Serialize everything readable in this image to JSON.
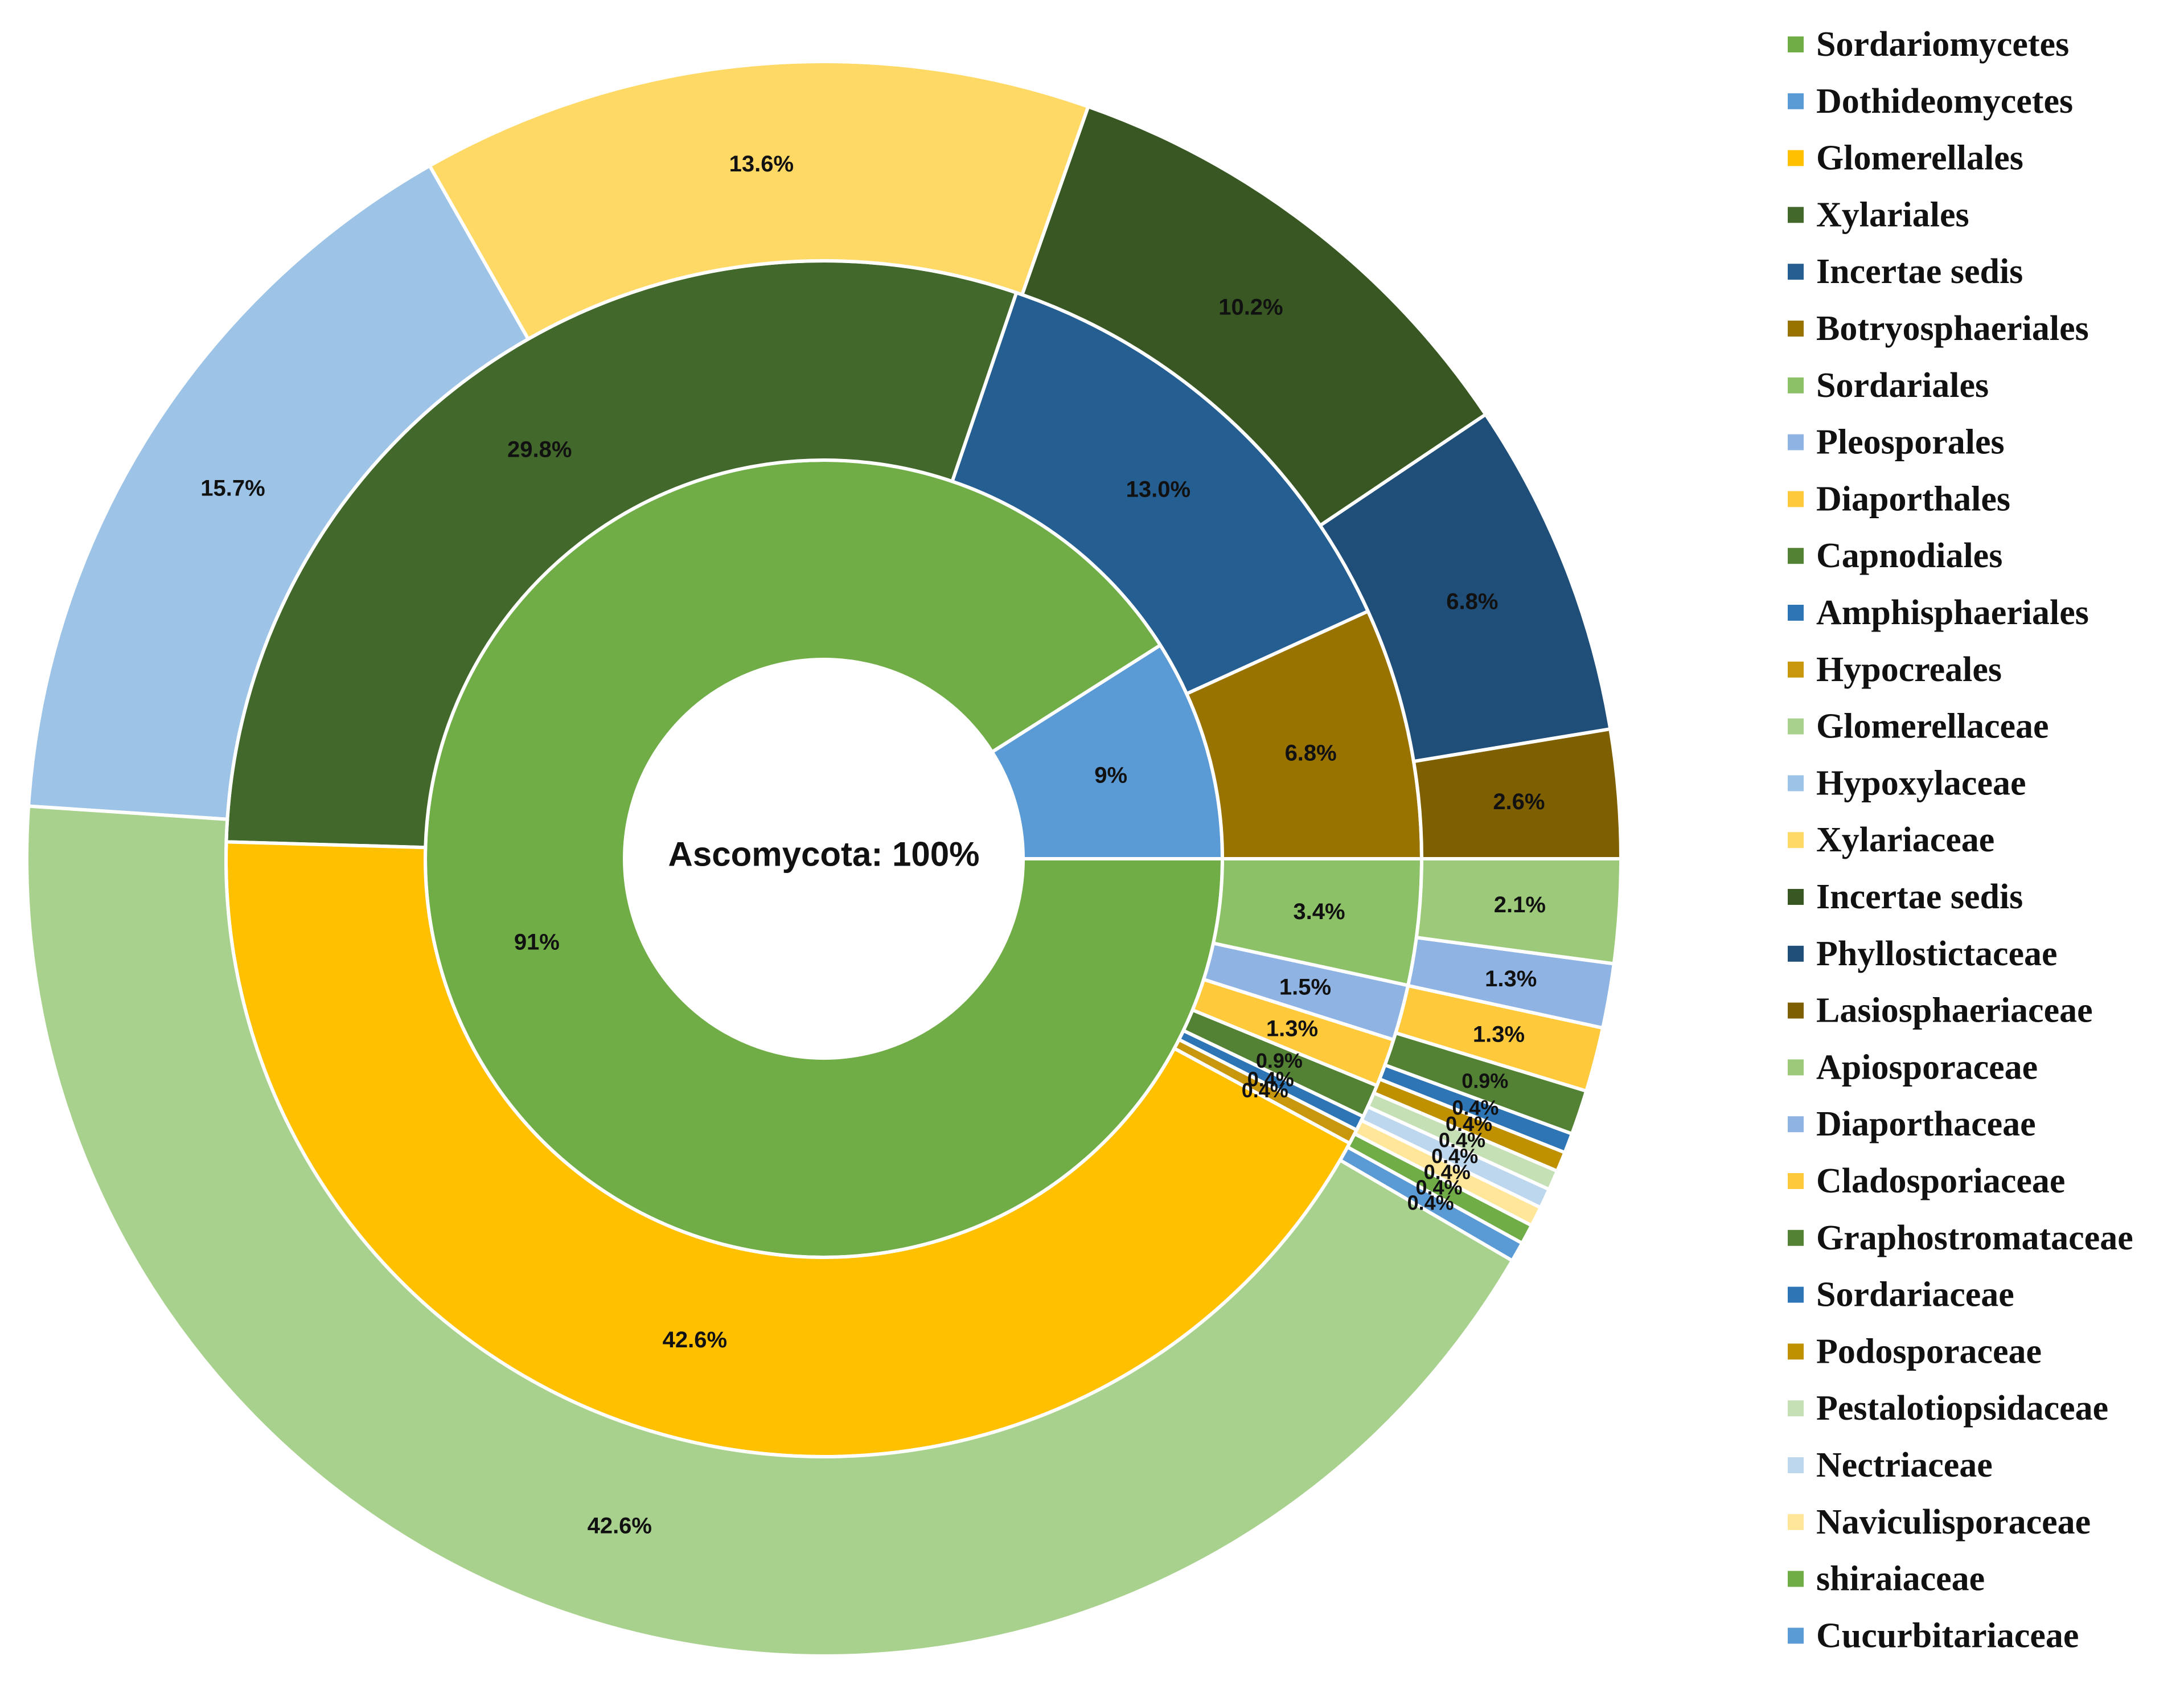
{
  "chart_data": {
    "type": "pie",
    "subtype": "multi-level donut (sunburst)",
    "center_label": "Ascomycota: 100%",
    "rings": [
      {
        "name": "class",
        "segments": [
          {
            "name": "Dothideomycetes",
            "value": 9,
            "label": "9%",
            "color": "#5B9BD5"
          },
          {
            "name": "Sordariomycetes",
            "value": 91,
            "label": "91%",
            "color": "#70AD47"
          }
        ]
      },
      {
        "name": "order",
        "segments": [
          {
            "name": "Botryosphaeriales",
            "value": 6.8,
            "label": "6.8%",
            "color": "#997300"
          },
          {
            "name": "Incertae sedis",
            "value": 13.0,
            "label": "13.0%",
            "color": "#255E91"
          },
          {
            "name": "Xylariales",
            "value": 29.8,
            "label": "29.8%",
            "color": "#43682B"
          },
          {
            "name": "Glomerellales",
            "value": 42.6,
            "label": "42.6%",
            "color": "#FFC000"
          },
          {
            "name": "Hypocreales",
            "value": 0.4,
            "label": "0.4%",
            "color": "#C9970C"
          },
          {
            "name": "Amphisphaeriales",
            "value": 0.4,
            "label": "0.4%",
            "color": "#2E75B6"
          },
          {
            "name": "Capnodiales",
            "value": 0.9,
            "label": "0.9%",
            "color": "#548235"
          },
          {
            "name": "Diaporthales",
            "value": 1.3,
            "label": "1.3%",
            "color": "#FFC93C"
          },
          {
            "name": "Pleosporales",
            "value": 1.5,
            "label": "1.5%",
            "color": "#8FB4E3"
          },
          {
            "name": "Sordariales",
            "value": 3.4,
            "label": "3.4%",
            "color": "#8CC168"
          }
        ]
      },
      {
        "name": "family",
        "segments": [
          {
            "name": "Lasiosphaeriaceae",
            "value": 2.6,
            "label": "2.6%",
            "color": "#7F6000"
          },
          {
            "name": "Phyllostictaceae",
            "value": 6.8,
            "label": "6.8%",
            "color": "#1F4E79"
          },
          {
            "name": "Incertae sedis",
            "value": 10.2,
            "label": "10.2%",
            "color": "#385723"
          },
          {
            "name": "Xylariaceae",
            "value": 13.6,
            "label": "13.6%",
            "color": "#FFD966"
          },
          {
            "name": "Hypoxylaceae",
            "value": 15.7,
            "label": "15.7%",
            "color": "#9DC3E6"
          },
          {
            "name": "Glomerellaceae",
            "value": 42.6,
            "label": "42.6%",
            "color": "#A9D18E"
          },
          {
            "name": "Cucurbitariaceae",
            "value": 0.4,
            "label": "0.4%",
            "color": "#5B9BD5"
          },
          {
            "name": "shiraiaceae",
            "value": 0.4,
            "label": "0.4%",
            "color": "#70AD47"
          },
          {
            "name": "Naviculisporaceae",
            "value": 0.4,
            "label": "0.4%",
            "color": "#FFE699"
          },
          {
            "name": "Nectriaceae",
            "value": 0.4,
            "label": "0.4%",
            "color": "#BDD7EE"
          },
          {
            "name": "Pestalotiopsidaceae",
            "value": 0.4,
            "label": "0.4%",
            "color": "#C5E0B4"
          },
          {
            "name": "Podosporaceae",
            "value": 0.4,
            "label": "0.4%",
            "color": "#BF9000"
          },
          {
            "name": "Sordariaceae",
            "value": 0.4,
            "label": "0.4%",
            "color": "#2E75B6"
          },
          {
            "name": "Graphostromataceae",
            "value": 0.9,
            "label": "0.9%",
            "color": "#548235"
          },
          {
            "name": "Cladosporiaceae",
            "value": 1.3,
            "label": "1.3%",
            "color": "#FFC93C"
          },
          {
            "name": "Diaporthaceae",
            "value": 1.3,
            "label": "1.3%",
            "color": "#8FB4E3"
          },
          {
            "name": "Apiosporaceae",
            "value": 2.1,
            "label": "2.1%",
            "color": "#9DC97A"
          }
        ]
      }
    ],
    "legend": {
      "placement": "right",
      "entries": [
        {
          "name": "Sordariomycetes",
          "color": "#70AD47"
        },
        {
          "name": "Dothideomycetes",
          "color": "#5B9BD5"
        },
        {
          "name": "Glomerellales",
          "color": "#FFC000"
        },
        {
          "name": "Xylariales",
          "color": "#43682B"
        },
        {
          "name": "Incertae sedis",
          "color": "#255E91"
        },
        {
          "name": "Botryosphaeriales",
          "color": "#997300"
        },
        {
          "name": "Sordariales",
          "color": "#8CC168"
        },
        {
          "name": "Pleosporales",
          "color": "#8FB4E3"
        },
        {
          "name": "Diaporthales",
          "color": "#FFC93C"
        },
        {
          "name": "Capnodiales",
          "color": "#548235"
        },
        {
          "name": "Amphisphaeriales",
          "color": "#2E75B6"
        },
        {
          "name": "Hypocreales",
          "color": "#C9970C"
        },
        {
          "name": "Glomerellaceae",
          "color": "#A9D18E"
        },
        {
          "name": "Hypoxylaceae",
          "color": "#9DC3E6"
        },
        {
          "name": "Xylariaceae",
          "color": "#FFD966"
        },
        {
          "name": "Incertae sedis",
          "color": "#385723"
        },
        {
          "name": "Phyllostictaceae",
          "color": "#1F4E79"
        },
        {
          "name": "Lasiosphaeriaceae",
          "color": "#7F6000"
        },
        {
          "name": "Apiosporaceae",
          "color": "#9DC97A"
        },
        {
          "name": "Diaporthaceae",
          "color": "#8FB4E3"
        },
        {
          "name": "Cladosporiaceae",
          "color": "#FFC93C"
        },
        {
          "name": "Graphostromataceae",
          "color": "#548235"
        },
        {
          "name": "Sordariaceae",
          "color": "#2E75B6"
        },
        {
          "name": "Podosporaceae",
          "color": "#BF9000"
        },
        {
          "name": "Pestalotiopsidaceae",
          "color": "#C5E0B4"
        },
        {
          "name": "Nectriaceae",
          "color": "#BDD7EE"
        },
        {
          "name": "Naviculisporaceae",
          "color": "#FFE699"
        },
        {
          "name": "shiraiaceae",
          "color": "#70AD47"
        },
        {
          "name": "Cucurbitariaceae",
          "color": "#5B9BD5"
        }
      ]
    }
  }
}
